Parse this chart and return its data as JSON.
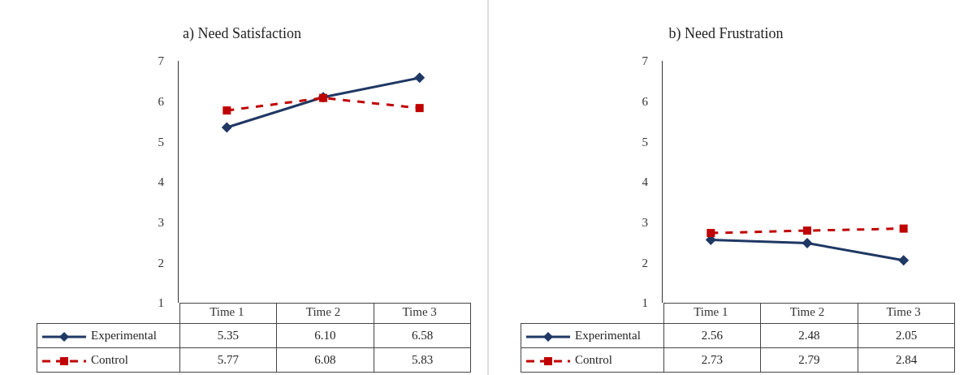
{
  "chart_data": [
    {
      "type": "line",
      "title": "a) Need Satisfaction",
      "categories": [
        "Time 1",
        "Time 2",
        "Time 3"
      ],
      "ylim": [
        1,
        7
      ],
      "yticks": [
        1,
        2,
        3,
        4,
        5,
        6,
        7
      ],
      "grid": false,
      "legend": "bottom left",
      "series": [
        {
          "name": "Experimental",
          "color": "#1f3864",
          "values": [
            5.35,
            6.1,
            6.58
          ],
          "value_labels": [
            "5.35",
            "6.10",
            "6.58"
          ],
          "marker": "diamond",
          "line_style": "solid"
        },
        {
          "name": "Control",
          "color": "#c00000",
          "values": [
            5.77,
            6.08,
            5.83
          ],
          "value_labels": [
            "5.77",
            "6.08",
            "5.83"
          ],
          "marker": "square",
          "line_style": "dashed"
        }
      ]
    },
    {
      "type": "line",
      "title": "b) Need Frustration",
      "categories": [
        "Time 1",
        "Time 2",
        "Time 3"
      ],
      "ylim": [
        1,
        7
      ],
      "yticks": [
        1,
        2,
        3,
        4,
        5,
        6,
        7
      ],
      "grid": false,
      "legend": "bottom left",
      "series": [
        {
          "name": "Experimental",
          "color": "#1f3864",
          "values": [
            2.56,
            2.48,
            2.05
          ],
          "value_labels": [
            "2.56",
            "2.48",
            "2.05"
          ],
          "marker": "diamond",
          "line_style": "solid"
        },
        {
          "name": "Control",
          "color": "#c00000",
          "values": [
            2.73,
            2.79,
            2.84
          ],
          "value_labels": [
            "2.73",
            "2.79",
            "2.84"
          ],
          "marker": "square",
          "line_style": "dashed"
        }
      ]
    }
  ]
}
